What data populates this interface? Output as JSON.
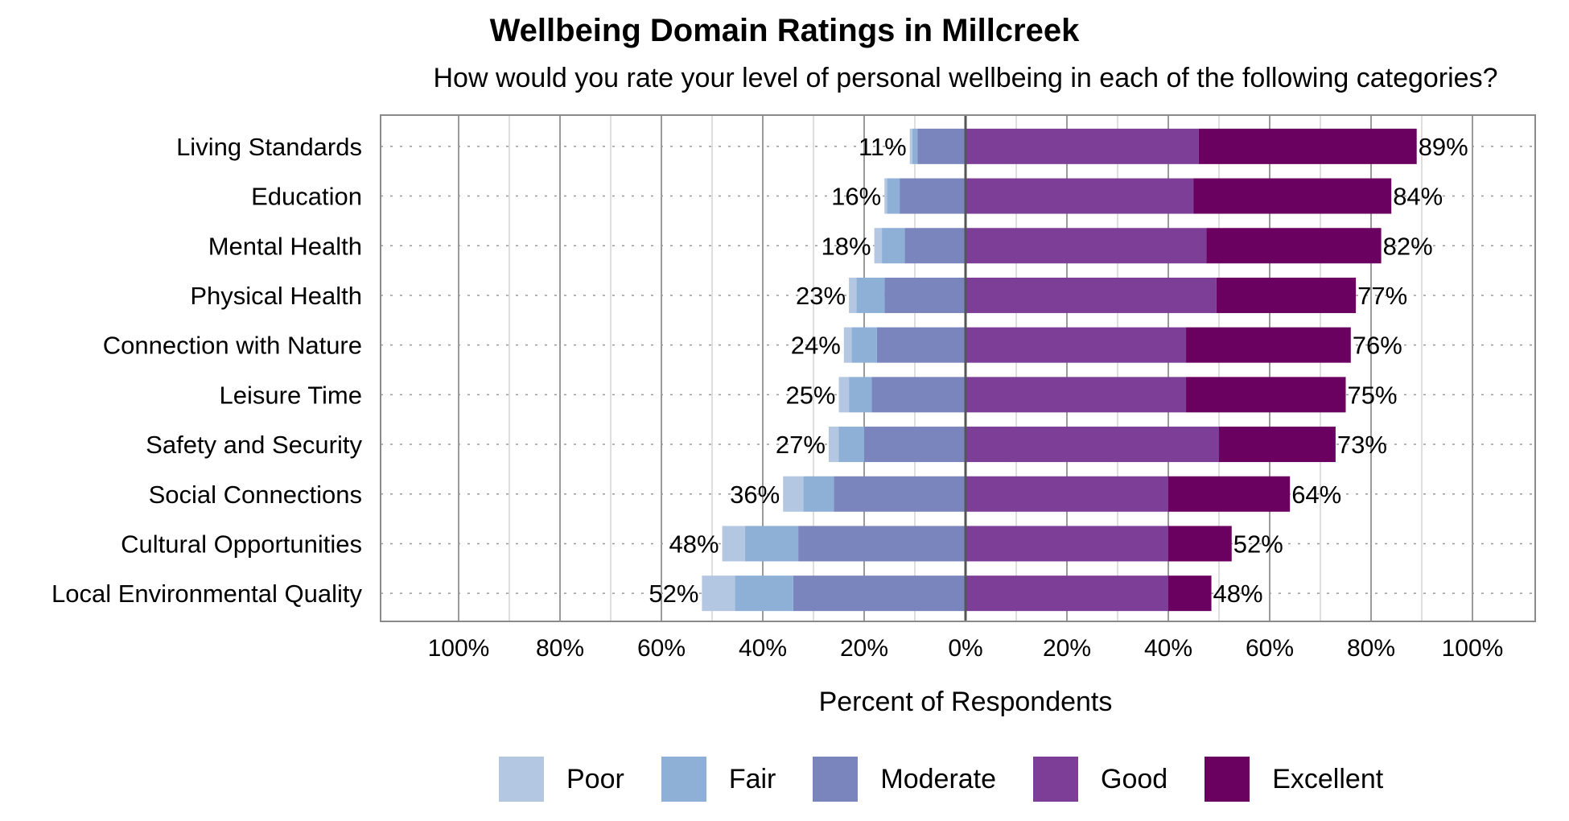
{
  "chart_data": {
    "type": "bar",
    "orientation": "horizontal",
    "stacked": "diverging",
    "title": "Wellbeing Domain Ratings in Millcreek",
    "subtitle": "How would you rate your level of personal wellbeing in each of the following categories?",
    "xlabel": "Percent of Respondents",
    "ylabel": "",
    "xlim": [
      -100,
      100
    ],
    "x_ticks": [
      "100%",
      "80%",
      "60%",
      "40%",
      "20%",
      "0%",
      "20%",
      "40%",
      "60%",
      "80%",
      "100%"
    ],
    "categories": [
      "Living Standards",
      "Education",
      "Mental Health",
      "Physical Health",
      "Connection with Nature",
      "Leisure Time",
      "Safety and Security",
      "Social Connections",
      "Cultural Opportunities",
      "Local Environmental Quality"
    ],
    "series": [
      {
        "name": "Poor",
        "side": "negative",
        "color": "#b4c7e2",
        "values": [
          0.5,
          0.5,
          1.5,
          1.5,
          1.5,
          2,
          2,
          4,
          4.5,
          6.5
        ]
      },
      {
        "name": "Fair",
        "side": "negative",
        "color": "#8eb0d6",
        "values": [
          1,
          2.5,
          4.5,
          5.5,
          5,
          4.5,
          5,
          6,
          10.5,
          11.5
        ]
      },
      {
        "name": "Moderate",
        "side": "negative",
        "color": "#7b85bd",
        "values": [
          9.5,
          13,
          12,
          16,
          17.5,
          18.5,
          20,
          26,
          33,
          34
        ]
      },
      {
        "name": "Good",
        "side": "positive",
        "color": "#7d3e98",
        "values": [
          46,
          45,
          47.5,
          49.5,
          43.5,
          43.5,
          50,
          40,
          40,
          40
        ]
      },
      {
        "name": "Excellent",
        "side": "positive",
        "color": "#6a005f",
        "values": [
          43,
          39,
          34.5,
          27.5,
          32.5,
          31.5,
          23,
          24,
          12.5,
          8.5
        ]
      }
    ],
    "negative_totals": [
      "11%",
      "16%",
      "18%",
      "23%",
      "24%",
      "25%",
      "27%",
      "36%",
      "48%",
      "52%"
    ],
    "positive_totals": [
      "89%",
      "84%",
      "82%",
      "77%",
      "76%",
      "75%",
      "73%",
      "64%",
      "52%",
      "48%"
    ],
    "grid": true,
    "legend_position": "bottom"
  }
}
